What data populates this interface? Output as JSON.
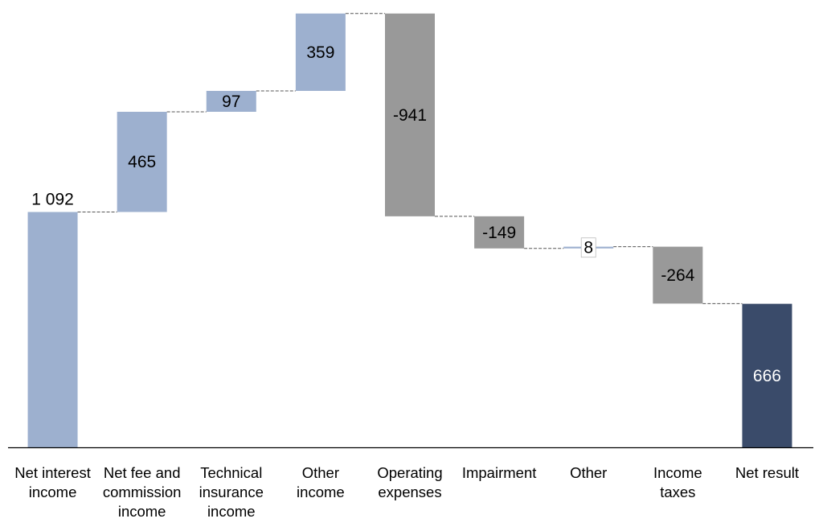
{
  "chart_data": {
    "type": "waterfall",
    "title": "",
    "xlabel": "",
    "ylabel": "",
    "ylim": [
      0,
      2016
    ],
    "grid": false,
    "legend": "none",
    "categories": [
      "Net interest\nincome",
      "Net fee and\ncommission\nincome",
      "Technical\ninsurance\nincome",
      "Other\nincome",
      "Operating\nexpenses",
      "Impairment",
      "Other",
      "Income\ntaxes",
      "Net result"
    ],
    "values": [
      1092,
      465,
      97,
      359,
      -941,
      -149,
      8,
      -264,
      666
    ],
    "labels": [
      "1 092",
      "465",
      "97",
      "359",
      "-941",
      "-149",
      "8",
      "-264",
      "666"
    ],
    "bar_kinds": [
      "total",
      "delta",
      "delta",
      "delta",
      "delta",
      "delta",
      "delta",
      "delta",
      "total"
    ],
    "colors": {
      "start": "#9db0cf",
      "positive": "#9db0cf",
      "negative": "#999999",
      "end": "#3a4b6a",
      "connector": "#555555",
      "axis": "#000000"
    }
  }
}
